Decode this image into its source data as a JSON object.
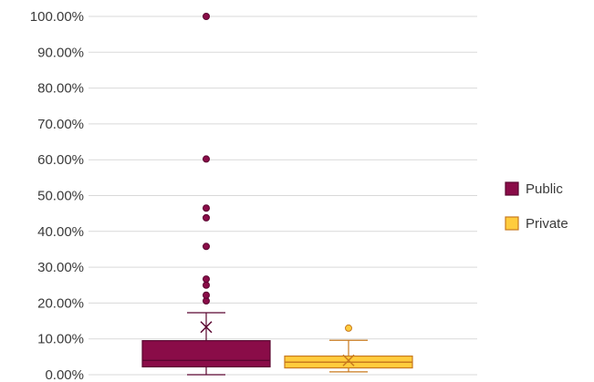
{
  "chart_data": {
    "type": "box",
    "ylim": [
      0,
      100
    ],
    "yticks": [
      {
        "value": 0,
        "label": "0.00%"
      },
      {
        "value": 10,
        "label": "10.00%"
      },
      {
        "value": 20,
        "label": "20.00%"
      },
      {
        "value": 30,
        "label": "30.00%"
      },
      {
        "value": 40,
        "label": "40.00%"
      },
      {
        "value": 50,
        "label": "50.00%"
      },
      {
        "value": 60,
        "label": "60.00%"
      },
      {
        "value": 70,
        "label": "70.00%"
      },
      {
        "value": 80,
        "label": "80.00%"
      },
      {
        "value": 90,
        "label": "90.00%"
      },
      {
        "value": 100,
        "label": "100.00%"
      }
    ],
    "grid": true,
    "legend_position": "right",
    "series": [
      {
        "name": "Public",
        "fill": "#8a0c48",
        "stroke": "#5a0630",
        "min": 0,
        "q1": 2.2,
        "median": 4.0,
        "q3": 9.5,
        "whisker_high": 17.3,
        "mean": 13.3,
        "outliers": [
          20.6,
          22.2,
          25.0,
          26.7,
          35.8,
          43.8,
          46.5,
          60.2,
          100.0
        ]
      },
      {
        "name": "Private",
        "fill": "#ffcc3d",
        "stroke": "#c87a1e",
        "min": 0.8,
        "q1": 1.9,
        "median": 3.5,
        "q3": 5.2,
        "whisker_high": 9.6,
        "mean": 4.0,
        "outliers": [
          13.0
        ]
      }
    ]
  }
}
